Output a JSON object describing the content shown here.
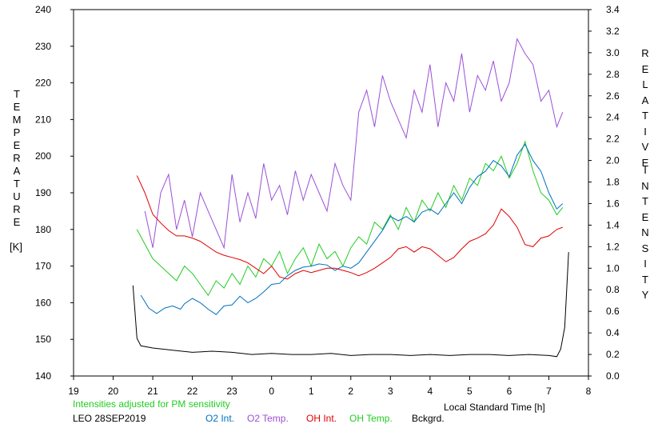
{
  "chart_data": {
    "type": "line",
    "left_axis": {
      "label_letters": "TEMPERATURE",
      "unit": "[K]",
      "range": [
        140,
        240
      ],
      "ticks": [
        140,
        150,
        160,
        170,
        180,
        190,
        200,
        210,
        220,
        230,
        240
      ]
    },
    "right_axis": {
      "label_word1": "RELATIVE",
      "label_word2": "INTENSITY",
      "range": [
        0.0,
        3.4
      ],
      "ticks": [
        "0.0",
        "0.2",
        "0.4",
        "0.6",
        "0.8",
        "1.0",
        "1.2",
        "1.4",
        "1.6",
        "1.8",
        "2.0",
        "2.2",
        "2.4",
        "2.6",
        "2.8",
        "3.0",
        "3.2",
        "3.4"
      ]
    },
    "x_axis": {
      "label": "Local Standard Time [h]",
      "range": [
        19,
        32
      ],
      "tick_labels": [
        "19",
        "20",
        "21",
        "22",
        "23",
        "0",
        "1",
        "2",
        "3",
        "4",
        "5",
        "6",
        "7",
        "8"
      ]
    },
    "note": "Intensities adjusted for PM sensitivity",
    "station": "LEO 28SEP2019",
    "grid": false,
    "series": [
      {
        "name": "O2 Int.",
        "color": "#0070c0",
        "axis": "right",
        "x": [
          20.7,
          20.9,
          21.1,
          21.3,
          21.5,
          21.7,
          21.8,
          22.0,
          22.2,
          22.4,
          22.6,
          22.8,
          23.0,
          23.2,
          23.4,
          23.6,
          23.8,
          24.0,
          24.2,
          24.4,
          24.6,
          24.8,
          25.0,
          25.2,
          25.4,
          25.6,
          25.8,
          26.0,
          26.2,
          26.4,
          26.6,
          26.8,
          27.0,
          27.2,
          27.4,
          27.6,
          27.8,
          28.0,
          28.2,
          28.4,
          28.6,
          28.8,
          29.0,
          29.2,
          29.4,
          29.6,
          29.8,
          30.0,
          30.2,
          30.4,
          30.6,
          30.8,
          31.0,
          31.2,
          31.35
        ],
        "y": [
          0.75,
          0.63,
          0.58,
          0.63,
          0.65,
          0.62,
          0.67,
          0.72,
          0.68,
          0.62,
          0.57,
          0.65,
          0.66,
          0.74,
          0.68,
          0.72,
          0.78,
          0.85,
          0.86,
          0.93,
          0.98,
          1.01,
          1.02,
          1.04,
          1.03,
          0.98,
          1.02,
          1.0,
          1.05,
          1.15,
          1.25,
          1.35,
          1.48,
          1.44,
          1.48,
          1.43,
          1.52,
          1.55,
          1.5,
          1.6,
          1.7,
          1.6,
          1.75,
          1.85,
          1.9,
          2.0,
          1.95,
          1.85,
          2.05,
          2.15,
          2.0,
          1.9,
          1.7,
          1.55,
          1.6
        ]
      },
      {
        "name": "O2 Temp.",
        "color": "#9a4fd6",
        "axis": "left",
        "x": [
          20.8,
          21.0,
          21.2,
          21.4,
          21.6,
          21.8,
          22.0,
          22.2,
          22.4,
          22.6,
          22.8,
          23.0,
          23.2,
          23.4,
          23.6,
          23.8,
          24.0,
          24.2,
          24.4,
          24.6,
          24.8,
          25.0,
          25.2,
          25.4,
          25.6,
          25.8,
          26.0,
          26.2,
          26.4,
          26.6,
          26.8,
          27.0,
          27.2,
          27.4,
          27.6,
          27.8,
          28.0,
          28.2,
          28.4,
          28.6,
          28.8,
          29.0,
          29.2,
          29.4,
          29.6,
          29.8,
          30.0,
          30.2,
          30.4,
          30.6,
          30.8,
          31.0,
          31.2,
          31.35
        ],
        "y": [
          185,
          175,
          190,
          195,
          180,
          188,
          178,
          190,
          185,
          180,
          175,
          195,
          182,
          190,
          183,
          198,
          188,
          192,
          184,
          196,
          188,
          195,
          190,
          185,
          198,
          192,
          188,
          212,
          218,
          208,
          222,
          215,
          210,
          205,
          218,
          212,
          225,
          208,
          220,
          215,
          228,
          212,
          222,
          218,
          226,
          215,
          220,
          232,
          228,
          225,
          215,
          218,
          208,
          212
        ]
      },
      {
        "name": "OH Int.",
        "color": "#e00000",
        "axis": "right",
        "x": [
          20.6,
          20.8,
          21.0,
          21.2,
          21.4,
          21.6,
          21.8,
          22.0,
          22.2,
          22.4,
          22.6,
          22.8,
          23.0,
          23.2,
          23.4,
          23.6,
          23.8,
          24.0,
          24.2,
          24.4,
          24.6,
          24.8,
          25.0,
          25.2,
          25.4,
          25.6,
          25.8,
          26.0,
          26.2,
          26.4,
          26.6,
          26.8,
          27.0,
          27.2,
          27.4,
          27.6,
          27.8,
          28.0,
          28.2,
          28.4,
          28.6,
          28.8,
          29.0,
          29.2,
          29.4,
          29.6,
          29.8,
          30.0,
          30.2,
          30.4,
          30.6,
          30.8,
          31.0,
          31.2,
          31.35
        ],
        "y": [
          1.86,
          1.7,
          1.5,
          1.42,
          1.35,
          1.3,
          1.3,
          1.28,
          1.25,
          1.2,
          1.15,
          1.12,
          1.1,
          1.08,
          1.05,
          1.0,
          0.95,
          1.02,
          0.92,
          0.9,
          0.95,
          0.98,
          0.96,
          0.98,
          1.0,
          1.0,
          0.98,
          0.96,
          0.93,
          0.96,
          1.0,
          1.05,
          1.1,
          1.18,
          1.2,
          1.15,
          1.2,
          1.18,
          1.12,
          1.06,
          1.1,
          1.18,
          1.25,
          1.28,
          1.32,
          1.4,
          1.55,
          1.48,
          1.38,
          1.22,
          1.2,
          1.28,
          1.3,
          1.36,
          1.38
        ]
      },
      {
        "name": "OH Temp.",
        "color": "#22cc22",
        "axis": "left",
        "x": [
          20.6,
          20.8,
          21.0,
          21.2,
          21.4,
          21.6,
          21.8,
          22.0,
          22.2,
          22.4,
          22.6,
          22.8,
          23.0,
          23.2,
          23.4,
          23.6,
          23.8,
          24.0,
          24.2,
          24.4,
          24.6,
          24.8,
          25.0,
          25.2,
          25.4,
          25.6,
          25.8,
          26.0,
          26.2,
          26.4,
          26.6,
          26.8,
          27.0,
          27.2,
          27.4,
          27.6,
          27.8,
          28.0,
          28.2,
          28.4,
          28.6,
          28.8,
          29.0,
          29.2,
          29.4,
          29.6,
          29.8,
          30.0,
          30.2,
          30.4,
          30.6,
          30.8,
          31.0,
          31.2,
          31.35
        ],
        "y": [
          180,
          176,
          172,
          170,
          168,
          166,
          170,
          168,
          165,
          162,
          166,
          164,
          168,
          165,
          170,
          167,
          172,
          170,
          174,
          168,
          172,
          175,
          170,
          176,
          172,
          174,
          170,
          175,
          178,
          176,
          182,
          180,
          184,
          180,
          186,
          182,
          188,
          185,
          190,
          186,
          192,
          188,
          194,
          192,
          198,
          196,
          200,
          194,
          198,
          204,
          196,
          190,
          188,
          184,
          186
        ]
      },
      {
        "name": "Bckgrd.",
        "color": "#000000",
        "axis": "right",
        "x": [
          20.5,
          20.55,
          20.6,
          20.7,
          21.0,
          21.5,
          22.0,
          22.5,
          23.0,
          23.5,
          24.0,
          24.5,
          25.0,
          25.5,
          26.0,
          26.5,
          27.0,
          27.5,
          28.0,
          28.5,
          29.0,
          29.5,
          30.0,
          30.5,
          31.0,
          31.2,
          31.3,
          31.4,
          31.45,
          31.5
        ],
        "y": [
          0.84,
          0.6,
          0.35,
          0.28,
          0.26,
          0.24,
          0.22,
          0.23,
          0.22,
          0.2,
          0.21,
          0.2,
          0.2,
          0.21,
          0.19,
          0.2,
          0.2,
          0.19,
          0.2,
          0.19,
          0.2,
          0.2,
          0.19,
          0.2,
          0.19,
          0.18,
          0.25,
          0.45,
          0.8,
          1.15
        ]
      }
    ]
  }
}
